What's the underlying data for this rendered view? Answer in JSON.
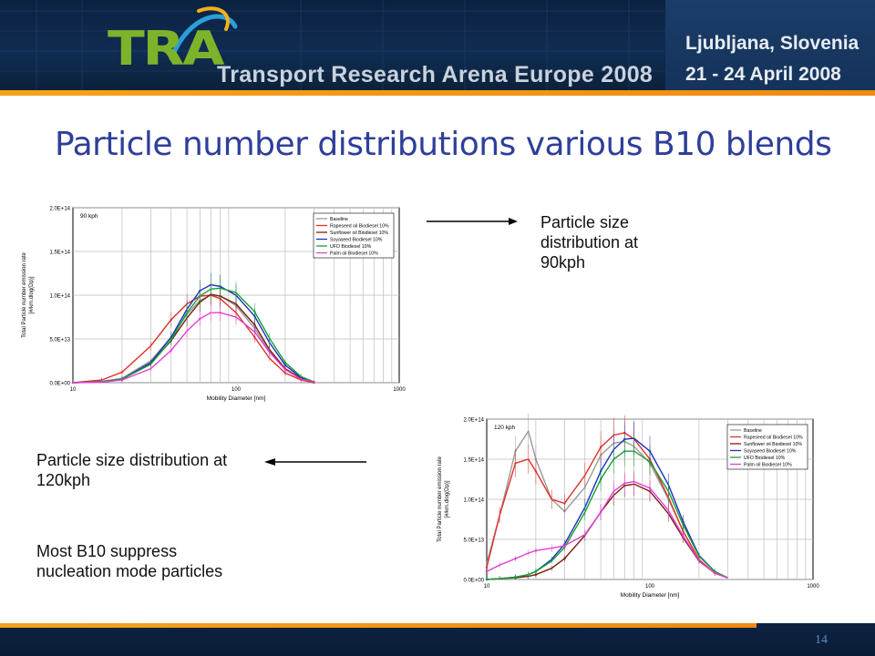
{
  "header": {
    "logo_text": "TRA",
    "logo_subtitle": "Transport Research Arena Europe 2008",
    "city": "Ljubljana, Slovenia",
    "dates": "21 - 24 April 2008",
    "colors": {
      "background": "#0f2c52",
      "accent": "#f4a21c",
      "logo_green": "#7cb32a"
    }
  },
  "slide": {
    "title": "Particle number distributions various B10 blends",
    "title_color": "#2e3f9a",
    "caption_90": "Particle size distribution at 90kph",
    "caption_120": "Particle size distribution at 120kph",
    "note": "Most B10 suppress nucleation mode particles",
    "page_number": "14"
  },
  "chart_data": [
    {
      "type": "line",
      "panel_label": "90 kph",
      "xlabel": "Mobility Diameter [nm]",
      "ylabel_lines": [
        "Total Particle number emission rate",
        "[#/km.dlog(Dp)]"
      ],
      "x_scale": "log",
      "xlim": [
        10,
        1000
      ],
      "x_ticks": [
        "10",
        "100",
        "1000"
      ],
      "ylim": [
        0,
        200000000000000.0
      ],
      "y_ticks": [
        "0.0E+00",
        "5.0E+13",
        "1.0E+14",
        "1.5E+14",
        "2.0E+14"
      ],
      "grid": true,
      "legend_position": "top-right",
      "x": [
        10,
        15,
        20,
        30,
        40,
        50,
        60,
        70,
        80,
        100,
        130,
        160,
        200,
        250,
        300
      ],
      "series": [
        {
          "name": "Baseline",
          "color": "#9a9a9a",
          "values": [
            0,
            1500000000000.0,
            5000000000000.0,
            25000000000000.0,
            52000000000000.0,
            78000000000000.0,
            94000000000000.0,
            100000000000000.0,
            99000000000000.0,
            88000000000000.0,
            62000000000000.0,
            36000000000000.0,
            15000000000000.0,
            5000000000000.0,
            1000000000000.0
          ]
        },
        {
          "name": "Rapeseed oil Biodiesel 10%",
          "color": "#e0302a",
          "values": [
            0,
            3000000000000.0,
            12000000000000.0,
            42000000000000.0,
            72000000000000.0,
            90000000000000.0,
            99000000000000.0,
            100000000000000.0,
            96000000000000.0,
            80000000000000.0,
            52000000000000.0,
            28000000000000.0,
            11000000000000.0,
            3000000000000.0,
            0
          ]
        },
        {
          "name": "Sunflower oil Biodiesel 10%",
          "color": "#7a1f10",
          "values": [
            0,
            1000000000000.0,
            4000000000000.0,
            22000000000000.0,
            48000000000000.0,
            74000000000000.0,
            92000000000000.0,
            101000000000000.0,
            99000000000000.0,
            90000000000000.0,
            66000000000000.0,
            38000000000000.0,
            16000000000000.0,
            5000000000000.0,
            1000000000000.0
          ]
        },
        {
          "name": "Soyaseed Biodiesel 10%",
          "color": "#1c2fbf",
          "values": [
            0,
            1000000000000.0,
            4000000000000.0,
            23000000000000.0,
            52000000000000.0,
            84000000000000.0,
            105000000000000.0,
            112000000000000.0,
            110000000000000.0,
            100000000000000.0,
            76000000000000.0,
            46000000000000.0,
            20000000000000.0,
            6000000000000.0,
            1000000000000.0
          ]
        },
        {
          "name": "UFO Biodiesel 10%",
          "color": "#16a030",
          "values": [
            0,
            1000000000000.0,
            4000000000000.0,
            21000000000000.0,
            49000000000000.0,
            80000000000000.0,
            99000000000000.0,
            107000000000000.0,
            108000000000000.0,
            103000000000000.0,
            81000000000000.0,
            51000000000000.0,
            23000000000000.0,
            7000000000000.0,
            1000000000000.0
          ]
        },
        {
          "name": "Palm oil Biodiesel 10%",
          "color": "#e040d0",
          "values": [
            0,
            500000000000.0,
            3000000000000.0,
            16000000000000.0,
            37000000000000.0,
            59000000000000.0,
            73000000000000.0,
            80000000000000.0,
            80000000000000.0,
            75000000000000.0,
            58000000000000.0,
            35000000000000.0,
            15000000000000.0,
            4000000000000.0,
            1000000000000.0
          ]
        }
      ]
    },
    {
      "type": "line",
      "panel_label": "120 kph",
      "xlabel": "Mobility Diameter [nm]",
      "ylabel_lines": [
        "Total Particle number emission rate",
        "[#/km.dlog(Dp)]"
      ],
      "x_scale": "log",
      "xlim": [
        10,
        1000
      ],
      "x_ticks": [
        "10",
        "100",
        "1000"
      ],
      "ylim": [
        0,
        200000000000000.0
      ],
      "y_ticks": [
        "0.0E+00",
        "5.0E+13",
        "1.0E+14",
        "1.5E+14",
        "2.0E+14"
      ],
      "grid": true,
      "legend_position": "top-right",
      "x": [
        10,
        12,
        15,
        18,
        20,
        25,
        30,
        40,
        50,
        60,
        70,
        80,
        100,
        130,
        160,
        200,
        250,
        300
      ],
      "series": [
        {
          "name": "Baseline",
          "color": "#9a9a9a",
          "values": [
            20000000000000.0,
            80000000000000.0,
            160000000000000.0,
            185000000000000.0,
            150000000000000.0,
            100000000000000.0,
            85000000000000.0,
            115000000000000.0,
            155000000000000.0,
            170000000000000.0,
            172000000000000.0,
            166000000000000.0,
            145000000000000.0,
            100000000000000.0,
            60000000000000.0,
            25000000000000.0,
            8000000000000.0,
            2000000000000.0
          ]
        },
        {
          "name": "Rapeseed oil Biodiesel 10%",
          "color": "#e0302a",
          "values": [
            15000000000000.0,
            80000000000000.0,
            145000000000000.0,
            150000000000000.0,
            135000000000000.0,
            100000000000000.0,
            95000000000000.0,
            130000000000000.0,
            165000000000000.0,
            180000000000000.0,
            183000000000000.0,
            175000000000000.0,
            150000000000000.0,
            102000000000000.0,
            60000000000000.0,
            25000000000000.0,
            8000000000000.0,
            2000000000000.0
          ]
        },
        {
          "name": "Sunflower oil Biodiesel 10%",
          "color": "#7a1f10",
          "values": [
            0,
            1000000000000.0,
            2000000000000.0,
            4000000000000.0,
            6000000000000.0,
            14000000000000.0,
            26000000000000.0,
            55000000000000.0,
            84000000000000.0,
            105000000000000.0,
            117000000000000.0,
            119000000000000.0,
            110000000000000.0,
            82000000000000.0,
            52000000000000.0,
            23000000000000.0,
            8000000000000.0,
            2000000000000.0
          ]
        },
        {
          "name": "Soyaseed Biodiesel 10%",
          "color": "#1c2fbf",
          "values": [
            0,
            1000000000000.0,
            3000000000000.0,
            6000000000000.0,
            10000000000000.0,
            25000000000000.0,
            44000000000000.0,
            90000000000000.0,
            135000000000000.0,
            162000000000000.0,
            175000000000000.0,
            176000000000000.0,
            160000000000000.0,
            118000000000000.0,
            72000000000000.0,
            30000000000000.0,
            10000000000000.0,
            2000000000000.0
          ]
        },
        {
          "name": "UFO Biodiesel 10%",
          "color": "#16a030",
          "values": [
            0,
            1000000000000.0,
            3000000000000.0,
            6000000000000.0,
            10000000000000.0,
            23000000000000.0,
            40000000000000.0,
            84000000000000.0,
            125000000000000.0,
            150000000000000.0,
            160000000000000.0,
            160000000000000.0,
            147000000000000.0,
            110000000000000.0,
            68000000000000.0,
            29000000000000.0,
            10000000000000.0,
            2000000000000.0
          ]
        },
        {
          "name": "Palm oil Biodiesel 10%",
          "color": "#e040d0",
          "values": [
            10000000000000.0,
            18000000000000.0,
            26000000000000.0,
            33000000000000.0,
            36000000000000.0,
            39000000000000.0,
            42000000000000.0,
            56000000000000.0,
            84000000000000.0,
            110000000000000.0,
            120000000000000.0,
            122000000000000.0,
            114000000000000.0,
            86000000000000.0,
            54000000000000.0,
            24000000000000.0,
            8000000000000.0,
            2000000000000.0
          ]
        }
      ]
    }
  ]
}
